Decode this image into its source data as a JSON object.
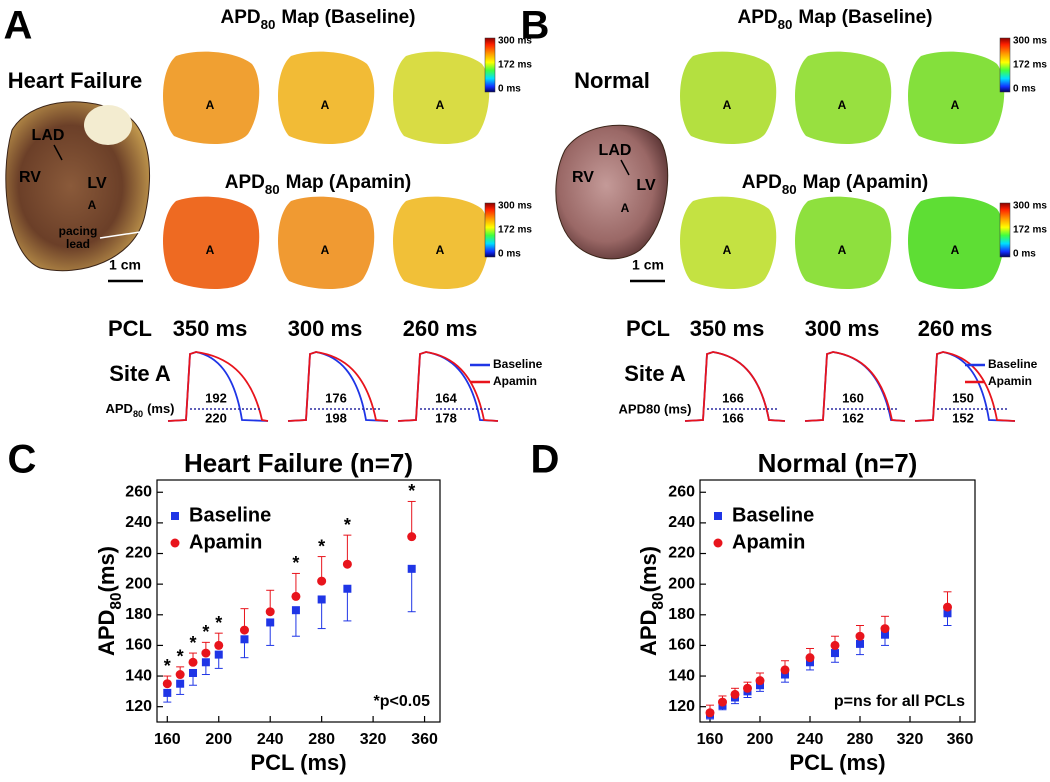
{
  "panel_a": {
    "letter": "A",
    "group": "Heart Failure",
    "map_title": {
      "apd": "APD",
      "sub": "80",
      "baseline": "Map (Baseline)",
      "apamin": "Map (Apamin)"
    },
    "colorbar": [
      "300 ms",
      "172 ms",
      "0 ms"
    ],
    "site_marker": "A",
    "heart_labels": {
      "lad": "LAD",
      "rv": "RV",
      "lv": "LV",
      "site": "A",
      "lead": [
        "pacing",
        "lead"
      ]
    },
    "scale": "1 cm",
    "pcl_label": "PCL",
    "pcls": [
      "350 ms",
      "300 ms",
      "260 ms"
    ],
    "site_title": "Site A",
    "apd_label": {
      "apd": "APD",
      "sub": "80",
      "unit": "(ms)"
    },
    "legend": [
      "Baseline",
      "Apamin"
    ],
    "baseline_apd": [
      192,
      176,
      164
    ],
    "apamin_apd": [
      220,
      198,
      178
    ]
  },
  "panel_b": {
    "letter": "B",
    "group": "Normal",
    "map_title": {
      "apd": "APD",
      "sub": "80",
      "baseline": "Map (Baseline)",
      "apamin": "Map (Apamin)"
    },
    "colorbar": [
      "300 ms",
      "172 ms",
      "0 ms"
    ],
    "site_marker": "A",
    "heart_labels": {
      "lad": "LAD",
      "rv": "RV",
      "lv": "LV",
      "site": "A"
    },
    "scale": "1 cm",
    "pcl_label": "PCL",
    "pcls": [
      "350 ms",
      "300 ms",
      "260 ms"
    ],
    "site_title": "Site A",
    "apd_label_plain": "APD80 (ms)",
    "legend": [
      "Baseline",
      "Apamin"
    ],
    "baseline_apd": [
      166,
      160,
      150
    ],
    "apamin_apd": [
      166,
      162,
      152
    ]
  },
  "chart_data": [
    {
      "type": "scatter",
      "panel": "C",
      "title": "Heart Failure (n=7)",
      "xlabel": "PCL (ms)",
      "ylabel": "APD",
      "ylabel_sub": "80",
      "ylabel_unit": "(ms)",
      "x": [
        160,
        170,
        180,
        190,
        200,
        220,
        240,
        260,
        280,
        300,
        350
      ],
      "series": [
        {
          "name": "Baseline",
          "color": "#1f35e6",
          "marker": "square",
          "error_side": "lower",
          "values": [
            129,
            135,
            142,
            149,
            154,
            164,
            175,
            183,
            190,
            197,
            210
          ],
          "errors": [
            6,
            7,
            8,
            8,
            9,
            12,
            15,
            17,
            19,
            21,
            28
          ]
        },
        {
          "name": "Apamin",
          "color": "#e8141c",
          "marker": "circle",
          "error_side": "upper",
          "values": [
            135,
            141,
            149,
            155,
            160,
            170,
            182,
            192,
            202,
            213,
            231
          ],
          "errors": [
            5,
            5,
            6,
            7,
            8,
            14,
            14,
            15,
            16,
            19,
            23
          ]
        }
      ],
      "xlim": [
        152,
        372
      ],
      "ylim": [
        110,
        268
      ],
      "xticks": [
        160,
        200,
        240,
        280,
        320,
        360
      ],
      "yticks": [
        120,
        140,
        160,
        180,
        200,
        220,
        240,
        260
      ],
      "legend": "upper left",
      "significance": {
        "label": "*",
        "x": [
          160,
          170,
          180,
          190,
          200,
          260,
          280,
          300,
          350
        ]
      },
      "annotation": "*p<0.05"
    },
    {
      "type": "scatter",
      "panel": "D",
      "title": "Normal (n=7)",
      "xlabel": "PCL (ms)",
      "ylabel": "APD",
      "ylabel_sub": "80",
      "ylabel_unit": "(ms)",
      "x": [
        160,
        170,
        180,
        190,
        200,
        220,
        240,
        260,
        280,
        300,
        350
      ],
      "series": [
        {
          "name": "Baseline",
          "color": "#1f35e6",
          "marker": "square",
          "error_side": "lower",
          "values": [
            115,
            121,
            126,
            130,
            134,
            141,
            149,
            155,
            161,
            167,
            181
          ],
          "errors": [
            3,
            3,
            4,
            4,
            4,
            5,
            5,
            6,
            7,
            7,
            8
          ]
        },
        {
          "name": "Apamin",
          "color": "#e8141c",
          "marker": "circle",
          "error_side": "upper",
          "values": [
            116,
            123,
            128,
            132,
            137,
            144,
            152,
            160,
            166,
            171,
            185
          ],
          "errors": [
            5,
            4,
            4,
            4,
            5,
            6,
            6,
            6,
            7,
            8,
            10
          ]
        }
      ],
      "xlim": [
        152,
        372
      ],
      "ylim": [
        110,
        268
      ],
      "xticks": [
        160,
        200,
        240,
        280,
        320,
        360
      ],
      "yticks": [
        120,
        140,
        160,
        180,
        200,
        220,
        240,
        260
      ],
      "legend": "upper left",
      "annotation": "p=ns for all PCLs"
    }
  ]
}
